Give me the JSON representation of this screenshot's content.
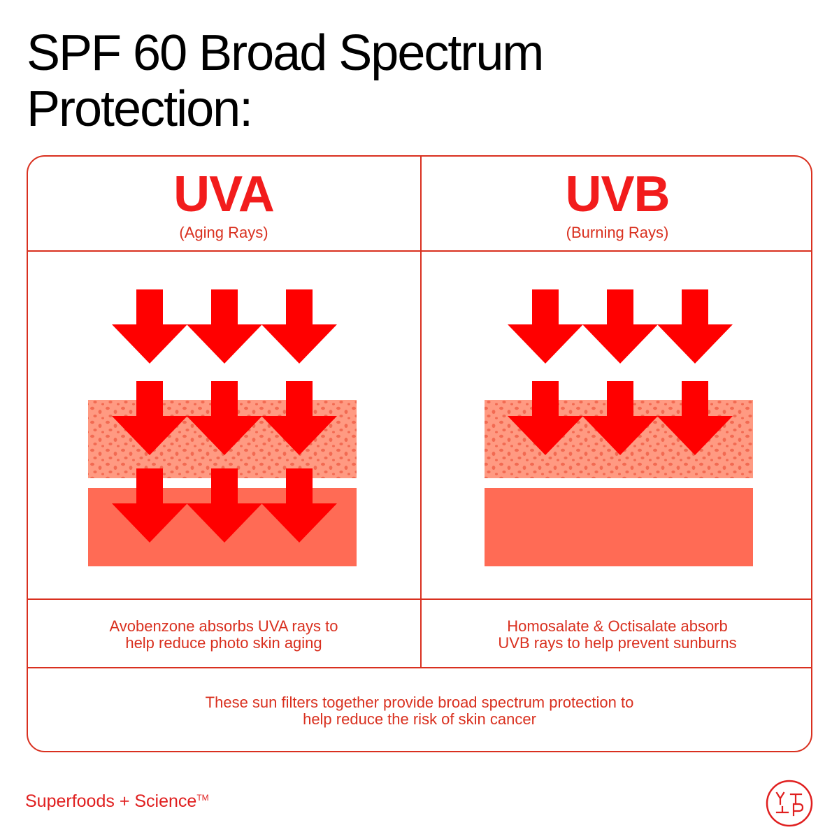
{
  "title": {
    "line1": "SPF 60 Broad Spectrum",
    "line2": "Protection:"
  },
  "uva": {
    "heading": "UVA",
    "subheading": "(Aging Rays)",
    "caption_line1": "Avobenzone absorbs UVA rays to",
    "caption_line2": "help reduce photo skin aging"
  },
  "uvb": {
    "heading": "UVB",
    "subheading": "(Burning Rays)",
    "caption_line1": "Homosalate & Octisalate absorb",
    "caption_line2": "UVB rays to help prevent sunburns"
  },
  "summary": {
    "line1": "These sun filters together provide broad spectrum protection to",
    "line2": "help reduce the risk of skin cancer"
  },
  "brand": {
    "name": "Superfoods + Science",
    "trademark": "TM"
  },
  "logo": {
    "icon": "ytp-monogram-icon",
    "letters": "YTP"
  },
  "colors": {
    "accent_red": "#f21c1c",
    "line_red": "#d9301f",
    "arrow_red": "#ff0000",
    "skin_upper": "#ff9a82",
    "skin_dots": "#f26a52",
    "skin_lower": "#ff6b55"
  }
}
